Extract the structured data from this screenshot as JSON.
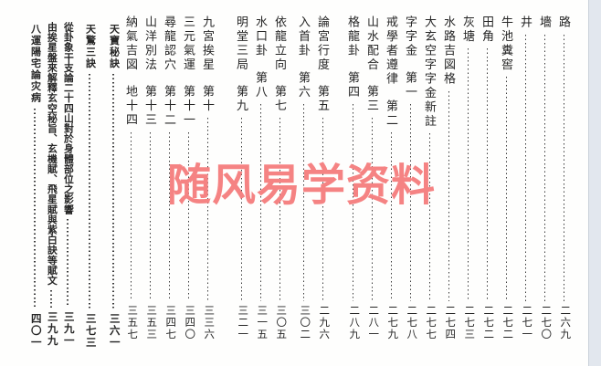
{
  "watermark": {
    "text": "随风易学资料",
    "color": "#f58383"
  },
  "colors": {
    "page_background": "#fefefd",
    "text": "#262626",
    "leader_dots": "#3a3a3a",
    "edge_strip": "#e2e7ee"
  },
  "toc": {
    "entries": [
      {
        "title": "路",
        "page": "二六九"
      },
      {
        "title": "墻",
        "page": "二七〇"
      },
      {
        "title": "井",
        "page": "二七一"
      },
      {
        "title": "牛池糞窖",
        "page": "二七二"
      },
      {
        "title": "田角",
        "page": "二七二"
      },
      {
        "title": "灰塘",
        "page": "二七三"
      },
      {
        "title": "水路吉図格",
        "page": "二七四"
      },
      {
        "title": "大玄空字字金新註",
        "page": "二七七"
      },
      {
        "title": "字字金",
        "part": "第一",
        "page": "二七八"
      },
      {
        "title": "戒學者遵律",
        "part": "第二",
        "page": "二七九"
      },
      {
        "title": "山水配合",
        "part": "第三",
        "page": "二八一"
      },
      {
        "title": "格龍卦",
        "part": "第四",
        "page": "二八九"
      },
      {
        "title": "論宮行度",
        "part": "第五",
        "page": "二九六"
      },
      {
        "title": "入首卦",
        "part": "第六",
        "page": "三〇二"
      },
      {
        "title": "依龍立向",
        "part": "第七",
        "page": "三〇五"
      },
      {
        "title": "水口卦",
        "part": "第八",
        "page": "三一五"
      },
      {
        "title": "明堂三局",
        "part": "第九",
        "page": "三二一"
      },
      {
        "title": "九宮挨星",
        "part": "第十",
        "page": "三三六"
      },
      {
        "title": "三元氣運",
        "part": "第十一",
        "page": "三四〇"
      },
      {
        "title": "尋龍認穴",
        "part": "第十二",
        "page": "三四七"
      },
      {
        "title": "山洋別法",
        "part": "第十三",
        "page": "三五三"
      },
      {
        "title": "納氣吉図",
        "part": "地十四",
        "page": "三五七"
      },
      {
        "title": "天寶秘訣",
        "page": "三六一"
      },
      {
        "title": "天驚三訣",
        "page": "三七三"
      },
      {
        "title": "從卦象干支論二十四山對於身體部位之影響",
        "page": "三九一"
      },
      {
        "title": "由挨星盤來解釋玄空秘旨、玄機賦、飛星賦與紫白訣等賦文",
        "page": "三九九"
      },
      {
        "title": "八運陽宅論灾病",
        "page": "四〇一"
      }
    ]
  }
}
